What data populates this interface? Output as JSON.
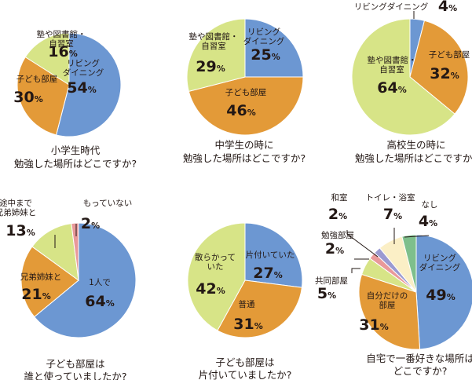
{
  "colors": {
    "blue": "#6c97d2",
    "orange": "#e39a38",
    "lime": "#d7e487",
    "pink": "#e9999a",
    "purple": "#9b9ad1",
    "cream": "#fbefc6",
    "green": "#7ebf8c",
    "ink": "#231815"
  },
  "chart_data": [
    {
      "type": "pie",
      "title": "小学生時代\n勉強した場所はどこですか?",
      "slices": [
        {
          "label": "リビング\nダイニング",
          "value": 54,
          "num": "54",
          "unit": "%",
          "color": "blue"
        },
        {
          "label": "子ども部屋",
          "value": 30,
          "num": "30",
          "unit": "%",
          "color": "orange"
        },
        {
          "label": "塾や図書館・\n自習室",
          "value": 16,
          "num": "16",
          "unit": "%",
          "color": "lime"
        }
      ]
    },
    {
      "type": "pie",
      "title": "中学生の時に\n勉強した場所はどこですか?",
      "slices": [
        {
          "label": "リビング\nダイニング",
          "value": 25,
          "num": "25",
          "unit": "%",
          "color": "blue"
        },
        {
          "label": "子ども部屋",
          "value": 46,
          "num": "46",
          "unit": "%",
          "color": "orange"
        },
        {
          "label": "塾や図書館・\n自習室",
          "value": 29,
          "num": "29",
          "unit": "%",
          "color": "lime"
        }
      ]
    },
    {
      "type": "pie",
      "title": "高校生の時に\n勉強した場所はどこですか?",
      "slices": [
        {
          "label": "リビングダイニング",
          "value": 4,
          "num": "4",
          "unit": "%",
          "color": "blue"
        },
        {
          "label": "子ども部屋",
          "value": 32,
          "num": "32",
          "unit": "%",
          "color": "orange"
        },
        {
          "label": "塾や図書館・\n自習室",
          "value": 64,
          "num": "64",
          "unit": "%",
          "color": "lime"
        }
      ]
    },
    {
      "type": "pie",
      "title": "子ども部屋は\n誰と使っていましたか?",
      "slices": [
        {
          "label": "1人で",
          "value": 64,
          "num": "64",
          "unit": "%",
          "color": "blue"
        },
        {
          "label": "兄弟姉妹と",
          "value": 21,
          "num": "21",
          "unit": "%",
          "color": "orange"
        },
        {
          "label": "途中まで\n兄弟姉妹と",
          "value": 13,
          "num": "13",
          "unit": "%",
          "color": "lime"
        },
        {
          "label": "もっていない",
          "value": 2,
          "num": "2",
          "unit": "%",
          "color": "pink"
        }
      ]
    },
    {
      "type": "pie",
      "title": "子ども部屋は\n片付いていましたか?",
      "slices": [
        {
          "label": "片付いていた",
          "value": 27,
          "num": "27",
          "unit": "%",
          "color": "blue"
        },
        {
          "label": "普通",
          "value": 31,
          "num": "31",
          "unit": "%",
          "color": "orange"
        },
        {
          "label": "散らかって\nいた",
          "value": 42,
          "num": "42",
          "unit": "%",
          "color": "lime"
        }
      ]
    },
    {
      "type": "pie",
      "title": "自宅で一番好きな場所は\nどこですか?",
      "slices": [
        {
          "label": "リビング\nダイニング",
          "value": 49,
          "num": "49",
          "unit": "%",
          "color": "blue"
        },
        {
          "label": "自分だけの\n部屋",
          "value": 31,
          "num": "31",
          "unit": "%",
          "color": "orange"
        },
        {
          "label": "共同部屋",
          "value": 5,
          "num": "5",
          "unit": "%",
          "color": "lime"
        },
        {
          "label": "勉強部屋",
          "value": 2,
          "num": "2",
          "unit": "%",
          "color": "pink"
        },
        {
          "label": "和室",
          "value": 2,
          "num": "2",
          "unit": "%",
          "color": "purple"
        },
        {
          "label": "トイレ・浴室",
          "value": 7,
          "num": "7",
          "unit": "%",
          "color": "cream"
        },
        {
          "label": "なし",
          "value": 4,
          "num": "4",
          "unit": "%",
          "color": "green"
        }
      ]
    }
  ]
}
